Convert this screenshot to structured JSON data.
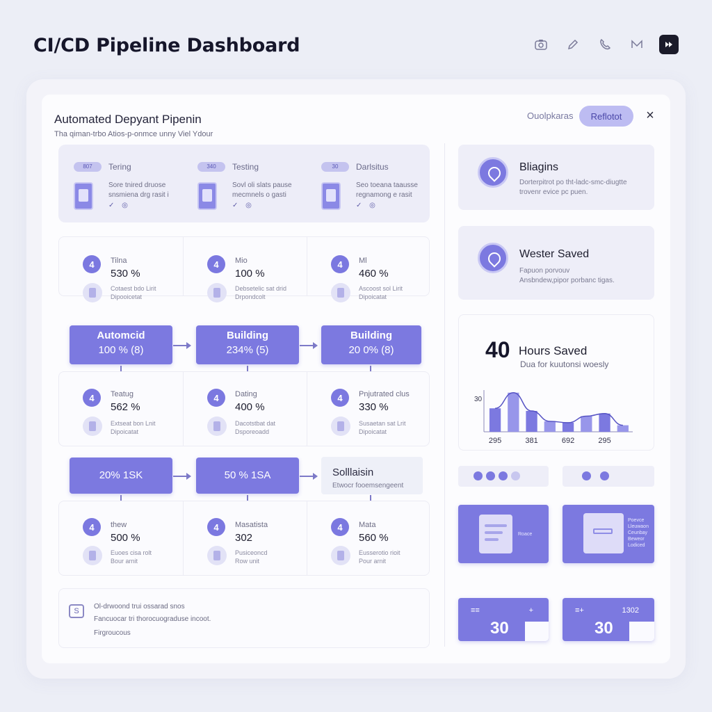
{
  "header": {
    "title": "CI/CD Pipeline Dashboard",
    "icons": [
      "camera-icon",
      "pencil-icon",
      "phone-icon",
      "mail-icon",
      "forward-icon"
    ]
  },
  "section": {
    "title": "Automated Depyant Pipenin",
    "subtitle": "Tha  qiman-trbo Atios-p-onmce unny Viel Ydour",
    "link": "Ouolpkaras",
    "button": "Reflotot"
  },
  "stages": [
    {
      "tag": "807",
      "name": "Tering",
      "desc1": "Sore tnired druose",
      "desc2": "snsmiena drg rasit i",
      "ticks": "✓ ◎"
    },
    {
      "tag": "340",
      "name": "Testing",
      "desc1": "Sovl oli slats pause",
      "desc2": "mecmnels o gasti",
      "ticks": "✓ ◎"
    },
    {
      "tag": "30",
      "name": "Darlsitus",
      "desc1": "Seo toeana taausse",
      "desc2": "regnamong e rasit",
      "ticks": "✓ ◎"
    }
  ],
  "metrics": [
    [
      {
        "num": "4",
        "label": "Tilna",
        "value": "530 %",
        "desc1": "Cotaest bdo Lirit",
        "desc2": "Dipooicetat"
      },
      {
        "num": "4",
        "label": "Mio",
        "value": "100 %",
        "desc1": "Debsetelic sat drid",
        "desc2": "Drpondcolt"
      },
      {
        "num": "4",
        "label": "Ml",
        "value": "460 %",
        "desc1": "Ascoost sol Lirit",
        "desc2": "Dipoicatat"
      }
    ],
    [
      {
        "num": "4",
        "label": "Teatug",
        "value": "562 %",
        "desc1": "Extseat bon Lnit",
        "desc2": "Dipoicatat"
      },
      {
        "num": "4",
        "label": "Dating",
        "value": "400 %",
        "desc1": "Dacotstbat dat",
        "desc2": "Dsporeoadd"
      },
      {
        "num": "4",
        "label": "Pnjutrated clus",
        "value": "330 %",
        "desc1": "Susaetan sat Lrit",
        "desc2": "Dipoicatat"
      }
    ],
    [
      {
        "num": "4",
        "label": "thew",
        "value": "500 %",
        "desc1": "Euoes cisa rolt",
        "desc2": "Bour arnit"
      },
      {
        "num": "4",
        "label": "Masatista",
        "value": "302",
        "desc1": "Pusiceoncd",
        "desc2": "Row unit"
      },
      {
        "num": "4",
        "label": "Mata",
        "value": "560 %",
        "desc1": "Eusserotio rioit",
        "desc2": "Pour arnit"
      }
    ]
  ],
  "flow_row1": [
    {
      "title": "Automcid",
      "sub": "100 % (8)"
    },
    {
      "title": "Building",
      "sub": "234% (5)"
    },
    {
      "title": "Building",
      "sub": "20 0% (8)"
    }
  ],
  "flow_row2": [
    {
      "text": "20%  1SK"
    },
    {
      "text": "50 %  1SA"
    },
    {
      "title": "Solllaisin",
      "sub": "Etwocr fooemsengeent"
    }
  ],
  "note": {
    "icon": "S",
    "line1": "Ol-drwoond trui ossarad snos",
    "line2": "Fancuocar tri thorocuograduse incoot.",
    "line3": "Firgroucous"
  },
  "right": {
    "card1": {
      "title": "Bliagins",
      "sub1": "Dorterpitrot po tht-ladc-smc-diugtte",
      "sub2": "trovenr evice pc puen."
    },
    "card2": {
      "title": "Wester Saved",
      "sub1": "Fapuon porvouv",
      "sub2": "Ansbndew,pipor porbanc tigas."
    },
    "hours": {
      "number": "40",
      "label": "Hours Saved",
      "sub": "Dua for kuutonsi woesly"
    },
    "illus2_lines": [
      "Poevce",
      "Lleuwaon",
      "Ceunbay",
      "Beweor",
      "Lodiced"
    ],
    "illus1_label": "Roace",
    "stat1": {
      "top_left": "≡≡",
      "top_right": "+",
      "value": "30"
    },
    "stat2": {
      "top_left": "≡+",
      "top_right": "1302",
      "value": "30"
    }
  },
  "chart_data": {
    "type": "bar",
    "categories": [
      "295",
      "",
      "381",
      "",
      "692",
      "",
      "295",
      ""
    ],
    "values": [
      18,
      30,
      16,
      8,
      7,
      12,
      14,
      5
    ],
    "ylabel_tick": "30",
    "ylim": [
      0,
      32
    ],
    "overlay": "line"
  },
  "colors": {
    "accent": "#7c79e0",
    "background": "#eceef6"
  }
}
